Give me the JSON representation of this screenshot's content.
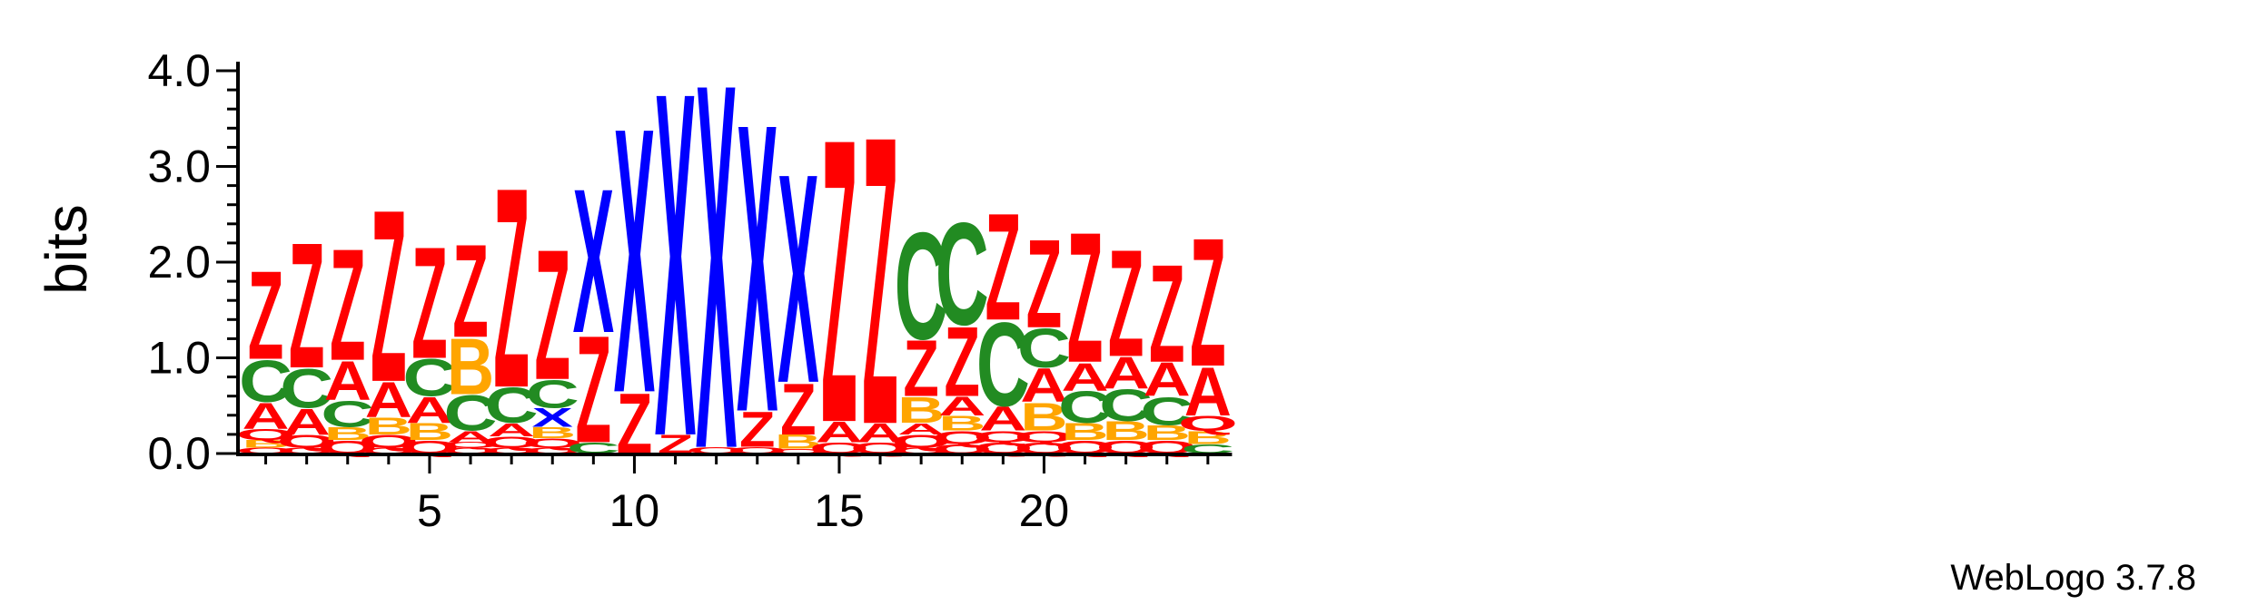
{
  "chart_data": {
    "type": "sequence-logo",
    "ylabel": "bits",
    "ylim": [
      0,
      4.0
    ],
    "yticks": [
      {
        "value": 0,
        "label": "0.0"
      },
      {
        "value": 1,
        "label": "1.0"
      },
      {
        "value": 2,
        "label": "2.0"
      },
      {
        "value": 3,
        "label": "3.0"
      },
      {
        "value": 4,
        "label": "4.0"
      }
    ],
    "xticks": [
      {
        "value": 5,
        "label": "5"
      },
      {
        "value": 10,
        "label": "10"
      },
      {
        "value": 15,
        "label": "15"
      },
      {
        "value": 20,
        "label": "20"
      }
    ],
    "positions": 24,
    "letter_colors": {
      "Z": "#ff0000",
      "Q": "#ff0000",
      "A": "#ff0000",
      "X": "#0000ff",
      "C": "#228b22",
      "B": "#ffa500"
    },
    "stacks": [
      [
        [
          "Q",
          0.06
        ],
        [
          "B",
          0.08
        ],
        [
          "Q",
          0.12
        ],
        [
          "A",
          0.28
        ],
        [
          "C",
          0.45
        ],
        [
          "Z",
          0.95
        ]
      ],
      [
        [
          "Q",
          0.06
        ],
        [
          "Q",
          0.14
        ],
        [
          "A",
          0.28
        ],
        [
          "C",
          0.42
        ],
        [
          "Z",
          1.35
        ]
      ],
      [
        [
          "Q",
          0.14
        ],
        [
          "B",
          0.14
        ],
        [
          "C",
          0.28
        ],
        [
          "A",
          0.42
        ],
        [
          "Z",
          1.2
        ]
      ],
      [
        [
          "Q",
          0.06
        ],
        [
          "Q",
          0.14
        ],
        [
          "B",
          0.18
        ],
        [
          "A",
          0.38
        ],
        [
          "Z",
          1.85
        ]
      ],
      [
        [
          "Q",
          0.14
        ],
        [
          "B",
          0.18
        ],
        [
          "A",
          0.28
        ],
        [
          "C",
          0.4
        ],
        [
          "Z",
          1.2
        ]
      ],
      [
        [
          "Q",
          0.06
        ],
        [
          "Q",
          0.06
        ],
        [
          "A",
          0.12
        ],
        [
          "C",
          0.38
        ],
        [
          "B",
          0.6
        ],
        [
          "Z",
          1.0
        ]
      ],
      [
        [
          "Q",
          0.06
        ],
        [
          "Q",
          0.12
        ],
        [
          "A",
          0.14
        ],
        [
          "C",
          0.38
        ],
        [
          "Z",
          2.15
        ]
      ],
      [
        [
          "Q",
          0.06
        ],
        [
          "Q",
          0.1
        ],
        [
          "B",
          0.12
        ],
        [
          "X",
          0.2
        ],
        [
          "C",
          0.3
        ],
        [
          "Z",
          1.4
        ]
      ],
      [
        [
          "C",
          0.12
        ],
        [
          "Z",
          1.15
        ],
        [
          "X",
          1.55
        ]
      ],
      [
        [
          "Z",
          0.65
        ],
        [
          "X",
          2.85
        ]
      ],
      [
        [
          "Z",
          0.2
        ],
        [
          "X",
          3.7
        ]
      ],
      [
        [
          "Q",
          0.07
        ],
        [
          "X",
          3.93
        ]
      ],
      [
        [
          "Q",
          0.07
        ],
        [
          "Z",
          0.38
        ],
        [
          "X",
          3.1
        ]
      ],
      [
        [
          "Q",
          0.05
        ],
        [
          "B",
          0.15
        ],
        [
          "Z",
          0.55
        ],
        [
          "X",
          2.25
        ]
      ],
      [
        [
          "Q",
          0.12
        ],
        [
          "A",
          0.22
        ],
        [
          "Z",
          3.05
        ]
      ],
      [
        [
          "Q",
          0.12
        ],
        [
          "A",
          0.2
        ],
        [
          "Z",
          3.1
        ]
      ],
      [
        [
          "Q",
          0.06
        ],
        [
          "Q",
          0.14
        ],
        [
          "A",
          0.12
        ],
        [
          "B",
          0.28
        ],
        [
          "Z",
          0.6
        ],
        [
          "C",
          1.15
        ]
      ],
      [
        [
          "Q",
          0.1
        ],
        [
          "Q",
          0.14
        ],
        [
          "B",
          0.16
        ],
        [
          "A",
          0.2
        ],
        [
          "Z",
          0.75
        ],
        [
          "C",
          1.1
        ]
      ],
      [
        [
          "Q",
          0.12
        ],
        [
          "Q",
          0.12
        ],
        [
          "A",
          0.26
        ],
        [
          "C",
          0.9
        ],
        [
          "Z",
          1.15
        ]
      ],
      [
        [
          "Q",
          0.12
        ],
        [
          "Q",
          0.12
        ],
        [
          "B",
          0.3
        ],
        [
          "A",
          0.36
        ],
        [
          "C",
          0.42
        ],
        [
          "Z",
          0.95
        ]
      ],
      [
        [
          "Q",
          0.14
        ],
        [
          "B",
          0.18
        ],
        [
          "C",
          0.34
        ],
        [
          "A",
          0.3
        ],
        [
          "Z",
          1.4
        ]
      ],
      [
        [
          "Q",
          0.14
        ],
        [
          "B",
          0.2
        ],
        [
          "C",
          0.34
        ],
        [
          "A",
          0.34
        ],
        [
          "Z",
          1.15
        ]
      ],
      [
        [
          "Q",
          0.14
        ],
        [
          "B",
          0.16
        ],
        [
          "C",
          0.3
        ],
        [
          "A",
          0.36
        ],
        [
          "Z",
          1.05
        ]
      ],
      [
        [
          "C",
          0.1
        ],
        [
          "B",
          0.14
        ],
        [
          "Q",
          0.16
        ],
        [
          "A",
          0.52
        ],
        [
          "Z",
          1.38
        ]
      ]
    ]
  },
  "footer": "WebLogo 3.7.8"
}
